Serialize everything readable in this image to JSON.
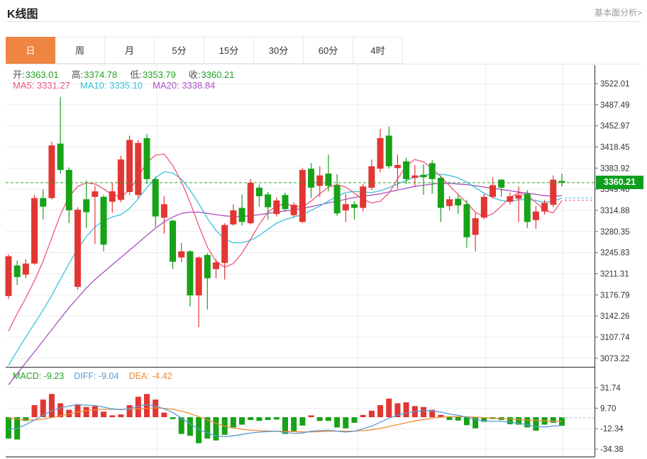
{
  "header": {
    "title": "K线图",
    "link": "基本面分析>"
  },
  "tabs": {
    "active": 0,
    "items": [
      "日",
      "周",
      "月",
      "5分",
      "15分",
      "30分",
      "60分",
      "4时"
    ]
  },
  "chart_data": {
    "type": "candlestick",
    "title": "K线图",
    "legend_position": "top-left-inside",
    "grid": true,
    "price_axis_ticks": [
      "3522.01",
      "3487.49",
      "3452.97",
      "3418.45",
      "3383.92",
      "3349.40",
      "3314.88",
      "3280.35",
      "3245.83",
      "3211.31",
      "3176.79",
      "3142.26",
      "3107.74",
      "3073.22"
    ],
    "ylim": [
      3060,
      3535
    ],
    "current_price": "3360.21",
    "ohlc_legend": [
      {
        "label": "开:",
        "value": "3363.01"
      },
      {
        "label": "高:",
        "value": "3374.78"
      },
      {
        "label": "低:",
        "value": "3353.79"
      },
      {
        "label": "收:",
        "value": "3360.21"
      }
    ],
    "ma_legend": [
      {
        "text": "MA5: 3331.27",
        "color_key": "ma5"
      },
      {
        "text": "MA10: 3335.10",
        "color_key": "ma10"
      },
      {
        "text": "MA20: 3338.84",
        "color_key": "ma20"
      }
    ],
    "candles": [
      [
        3175,
        3243,
        3170,
        3240
      ],
      [
        3225,
        3233,
        3193,
        3206
      ],
      [
        3210,
        3235,
        3204,
        3228
      ],
      [
        3228,
        3340,
        3226,
        3335
      ],
      [
        3335,
        3349,
        3300,
        3321
      ],
      [
        3335,
        3427,
        3333,
        3421
      ],
      [
        3424,
        3500,
        3375,
        3381
      ],
      [
        3381,
        3385,
        3294,
        3315
      ],
      [
        3190,
        3320,
        3185,
        3316
      ],
      [
        3333,
        3364,
        3286,
        3312
      ],
      [
        3337,
        3355,
        3260,
        3346
      ],
      [
        3337,
        3340,
        3248,
        3259
      ],
      [
        3329,
        3360,
        3311,
        3346
      ],
      [
        3332,
        3404,
        3328,
        3398
      ],
      [
        3345,
        3437,
        3340,
        3430
      ],
      [
        3340,
        3430,
        3335,
        3425
      ],
      [
        3433,
        3440,
        3358,
        3366
      ],
      [
        3366,
        3370,
        3288,
        3305
      ],
      [
        3303,
        3338,
        3277,
        3325
      ],
      [
        3298,
        3300,
        3219,
        3231
      ],
      [
        3238,
        3262,
        3230,
        3248
      ],
      [
        3248,
        3250,
        3158,
        3176
      ],
      [
        3176,
        3240,
        3124,
        3238
      ],
      [
        3242,
        3245,
        3153,
        3204
      ],
      [
        3219,
        3235,
        3204,
        3230
      ],
      [
        3229,
        3294,
        3202,
        3291
      ],
      [
        3292,
        3325,
        3290,
        3315
      ],
      [
        3319,
        3341,
        3290,
        3296
      ],
      [
        3294,
        3366,
        3292,
        3360
      ],
      [
        3352,
        3357,
        3321,
        3338
      ],
      [
        3341,
        3345,
        3300,
        3320
      ],
      [
        3309,
        3336,
        3305,
        3331
      ],
      [
        3340,
        3344,
        3313,
        3317
      ],
      [
        3307,
        3328,
        3303,
        3324
      ],
      [
        3296,
        3384,
        3294,
        3381
      ],
      [
        3383,
        3392,
        3335,
        3352
      ],
      [
        3355,
        3387,
        3337,
        3372
      ],
      [
        3375,
        3406,
        3346,
        3355
      ],
      [
        3356,
        3374,
        3306,
        3310
      ],
      [
        3315,
        3342,
        3296,
        3325
      ],
      [
        3325,
        3330,
        3300,
        3319
      ],
      [
        3319,
        3358,
        3313,
        3354
      ],
      [
        3352,
        3398,
        3348,
        3387
      ],
      [
        3383,
        3448,
        3377,
        3433
      ],
      [
        3437,
        3452,
        3383,
        3387
      ],
      [
        3384,
        3406,
        3350,
        3389
      ],
      [
        3395,
        3401,
        3358,
        3366
      ],
      [
        3368,
        3389,
        3355,
        3372
      ],
      [
        3373,
        3390,
        3340,
        3369
      ],
      [
        3392,
        3397,
        3342,
        3366
      ],
      [
        3368,
        3372,
        3296,
        3319
      ],
      [
        3322,
        3338,
        3315,
        3333
      ],
      [
        3334,
        3340,
        3309,
        3323
      ],
      [
        3325,
        3332,
        3254,
        3271
      ],
      [
        3275,
        3311,
        3248,
        3302
      ],
      [
        3303,
        3342,
        3300,
        3337
      ],
      [
        3337,
        3369,
        3334,
        3356
      ],
      [
        3365,
        3366,
        3337,
        3352
      ],
      [
        3329,
        3344,
        3324,
        3338
      ],
      [
        3334,
        3354,
        3296,
        3340
      ],
      [
        3342,
        3348,
        3286,
        3296
      ],
      [
        3299,
        3322,
        3285,
        3313
      ],
      [
        3313,
        3332,
        3308,
        3327
      ],
      [
        3324,
        3372,
        3320,
        3365
      ],
      [
        3363.01,
        3374.78,
        3353.79,
        3360.21
      ]
    ],
    "ma5": [
      3118,
      3146,
      3172,
      3200,
      3232,
      3270,
      3308,
      3337,
      3354,
      3360,
      3358,
      3350,
      3340,
      3337,
      3348,
      3370,
      3393,
      3405,
      3407,
      3388,
      3362,
      3328,
      3290,
      3255,
      3232,
      3222,
      3228,
      3245,
      3268,
      3292,
      3312,
      3322,
      3326,
      3322,
      3320,
      3330,
      3342,
      3353,
      3357,
      3353,
      3343,
      3333,
      3327,
      3330,
      3343,
      3366,
      3388,
      3398,
      3394,
      3383,
      3370,
      3355,
      3341,
      3327,
      3312,
      3304,
      3309,
      3322,
      3336,
      3344,
      3339,
      3328,
      3315,
      3311,
      3331
    ],
    "ma10": [
      3062,
      3085,
      3108,
      3130,
      3152,
      3176,
      3202,
      3228,
      3252,
      3272,
      3288,
      3298,
      3304,
      3308,
      3318,
      3334,
      3352,
      3368,
      3378,
      3376,
      3366,
      3348,
      3326,
      3302,
      3282,
      3268,
      3262,
      3262,
      3266,
      3274,
      3284,
      3294,
      3300,
      3304,
      3308,
      3315,
      3322,
      3330,
      3338,
      3344,
      3346,
      3345,
      3344,
      3347,
      3352,
      3358,
      3364,
      3369,
      3372,
      3374,
      3374,
      3372,
      3368,
      3361,
      3352,
      3343,
      3336,
      3331,
      3330,
      3332,
      3333,
      3331,
      3328,
      3330,
      3335
    ],
    "ma20": [
      3030,
      3048,
      3066,
      3084,
      3102,
      3120,
      3138,
      3156,
      3172,
      3188,
      3202,
      3214,
      3226,
      3238,
      3250,
      3262,
      3274,
      3286,
      3296,
      3304,
      3310,
      3312,
      3312,
      3310,
      3308,
      3306,
      3305,
      3305,
      3306,
      3308,
      3310,
      3312,
      3314,
      3316,
      3318,
      3321,
      3324,
      3327,
      3330,
      3333,
      3336,
      3338,
      3340,
      3342,
      3345,
      3348,
      3351,
      3354,
      3356,
      3358,
      3359,
      3359,
      3358,
      3357,
      3355,
      3353,
      3351,
      3349,
      3347,
      3345,
      3343,
      3341,
      3339,
      3338,
      3339
    ],
    "macd": {
      "legend": [
        {
          "text": "MACD: -9.23",
          "color_key": "up_text"
        },
        {
          "text": "DIFF: -9.04",
          "color_key": "diff"
        },
        {
          "text": "DEA: -4.42",
          "color_key": "dea"
        }
      ],
      "axis_ticks": [
        "31.74",
        "9.70",
        "-12.34",
        "-34.38"
      ],
      "hist": [
        -23,
        -24,
        -4,
        13,
        19,
        25,
        15,
        8,
        14,
        11,
        12,
        6,
        2,
        3,
        13,
        22,
        25,
        19,
        5,
        -2,
        -18,
        -20,
        -28,
        -23,
        -25,
        -19,
        -11,
        -8,
        -3,
        -4,
        -3,
        -2.5,
        -18,
        -15,
        -9,
        2,
        -4,
        -4,
        -11,
        -12,
        -6,
        2.5,
        7,
        13,
        20,
        15,
        16,
        12,
        11,
        8,
        2.5,
        -3,
        -3.6,
        -8.6,
        -12,
        -5,
        -2,
        -3,
        -7.6,
        -8,
        -11,
        -14.5,
        -8,
        -6,
        -9.23
      ],
      "diff": [
        -13,
        -12,
        -8,
        -3,
        2,
        7,
        10,
        12,
        13.5,
        13,
        12.5,
        11,
        9,
        8,
        9,
        12,
        13.5,
        12,
        9,
        5,
        -1,
        -7,
        -13,
        -17,
        -20,
        -21,
        -20,
        -18.5,
        -17,
        -16,
        -15.5,
        -15,
        -16.5,
        -17.5,
        -17,
        -15,
        -14.5,
        -14,
        -15,
        -16,
        -15,
        -12.5,
        -9.5,
        -5.5,
        -1,
        2,
        4.5,
        6,
        7,
        7,
        5.5,
        3.5,
        2,
        0,
        -2.5,
        -4,
        -4.5,
        -4.5,
        -5.5,
        -6.5,
        -8,
        -10,
        -10.5,
        -9.5,
        -9.04
      ],
      "dea": [
        -1,
        -2,
        -3,
        -3,
        -2,
        -0.5,
        1.5,
        3.5,
        5.5,
        7,
        8,
        8.5,
        8.5,
        8.5,
        8.5,
        9,
        9.5,
        10,
        9.5,
        8.5,
        6.5,
        4,
        0.5,
        -3,
        -6.5,
        -9.5,
        -11.5,
        -13,
        -14,
        -14.5,
        -14.8,
        -15,
        -15.2,
        -15.5,
        -15.8,
        -15.8,
        -15.5,
        -15.2,
        -15,
        -15,
        -15,
        -14.5,
        -13.5,
        -12,
        -10,
        -8,
        -6,
        -4,
        -2.5,
        -1,
        0,
        0.5,
        0.5,
        0.5,
        0,
        -0.5,
        -1,
        -1.5,
        -2,
        -2.5,
        -3,
        -3.5,
        -4,
        -4.3,
        -4.42
      ],
      "dashed_diff_ext": "-0.8"
    },
    "colors": {
      "up": "#e23632",
      "down": "#17a217",
      "up_text": "#21a121",
      "ma5": "#f0557e",
      "ma10": "#35c2da",
      "ma20": "#a84fc4",
      "diff": "#5b9bd5",
      "dea": "#ef8b31",
      "grid": "#ececec",
      "grid_macd": "#e7edf3",
      "axis_line": "#444444",
      "tick_text": "#333333",
      "price_line": "#2aa02a",
      "price_tag_bg": "#0f9f1f",
      "tab_active_bg": "#ee8540"
    }
  }
}
